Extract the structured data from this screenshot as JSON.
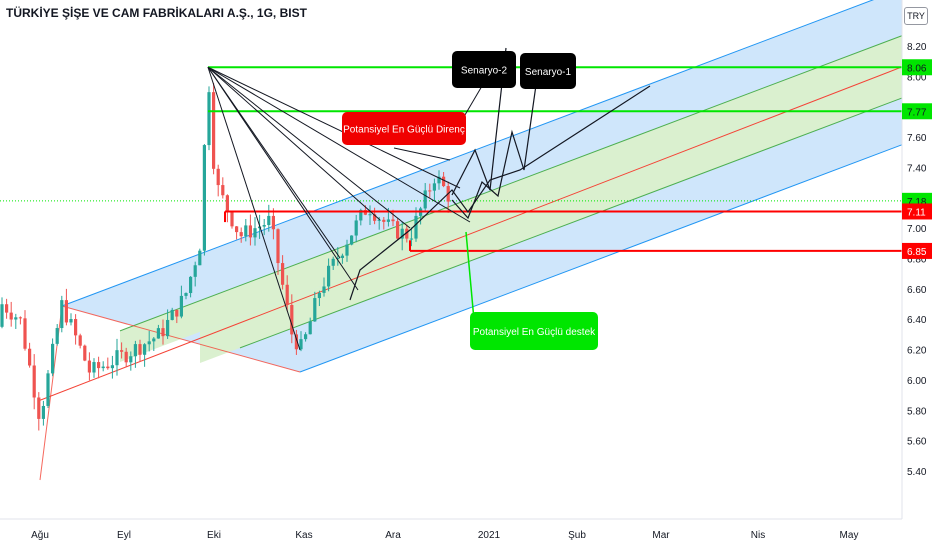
{
  "header": {
    "title": "TÜRKİYE ŞİŞE VE CAM FABRİKALARI A.Ş., 1G, BIST",
    "currency_badge": "TRY"
  },
  "colors": {
    "up": "#26a69a",
    "down": "#ef5350",
    "channel_fill": "#cfe6fb",
    "channel_edge": "#2196f3",
    "inner_fill": "#daf0cf",
    "inner_line": "#4caf50",
    "median": "#f44336",
    "support_resistance_red": "#ff0000",
    "target_green": "#00e600",
    "axis_label_bg_green": "#00e600",
    "axis_label_bg_red": "#ff0000",
    "axis_text": "#131722"
  },
  "chart_data": {
    "type": "candlestick",
    "symbol": "TÜRKİYE ŞİŞE VE CAM FABRİKALARI A.Ş., 1G, BIST",
    "currency": "TRY",
    "y_ticks": [
      "8.20",
      "8.00",
      "7.80",
      "7.60",
      "7.40",
      "7.20",
      "7.00",
      "6.80",
      "6.60",
      "6.40",
      "6.20",
      "6.00",
      "5.80",
      "5.60",
      "5.40"
    ],
    "x_ticks": [
      "Ağu",
      "Eyl",
      "Eki",
      "Kas",
      "Ara",
      "2021",
      "Şub",
      "Mar",
      "Nis",
      "May"
    ],
    "price_labels": [
      {
        "text": "8.06",
        "value": 8.06,
        "color": "green"
      },
      {
        "text": "7.77",
        "value": 7.77,
        "color": "green"
      },
      {
        "text": "7.18",
        "value": 7.18,
        "color": "green"
      },
      {
        "text": "7.11",
        "value": 7.11,
        "color": "red"
      },
      {
        "text": "6.85",
        "value": 6.85,
        "color": "red"
      }
    ],
    "annotations": [
      {
        "text": "Potansiyel En Güçlü Direnç",
        "style": "red-callout"
      },
      {
        "text": "Potansiyel En Güçlü destek",
        "style": "green-callout"
      },
      {
        "text": "Senaryo-2",
        "style": "black-callout"
      },
      {
        "text": "Senaryo-1",
        "style": "black-callout"
      }
    ]
  }
}
